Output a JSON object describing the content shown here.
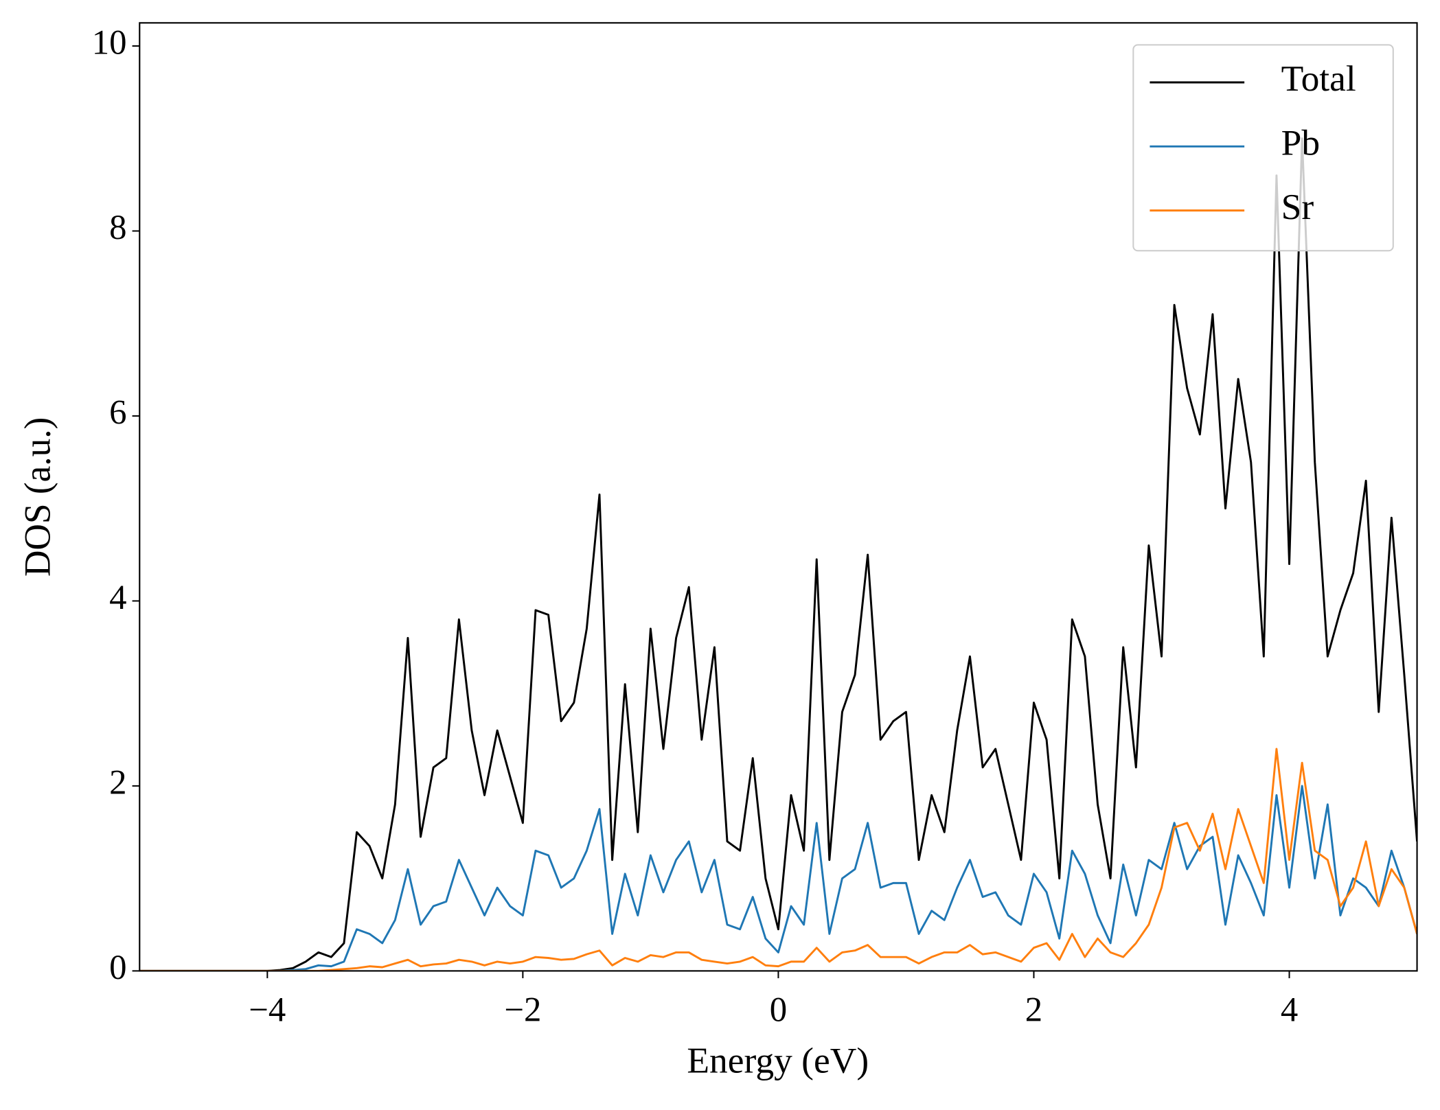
{
  "chart_data": {
    "type": "line",
    "xlabel": "Energy (eV)",
    "ylabel": "DOS (a.u.)",
    "xlim": [
      -5,
      5
    ],
    "ylim": [
      0,
      10.25
    ],
    "xticks": [
      {
        "value": -4,
        "label": "−4"
      },
      {
        "value": -2,
        "label": "−2"
      },
      0,
      2,
      4
    ],
    "yticks": [
      0,
      2,
      4,
      6,
      8,
      10
    ],
    "grid": false,
    "legend": "upper right",
    "x": [
      -5,
      -4.9,
      -4.8,
      -4.7,
      -4.6,
      -4.5,
      -4.4,
      -4.3,
      -4.2,
      -4.1,
      -4,
      -3.9,
      -3.8,
      -3.7,
      -3.6,
      -3.5,
      -3.4,
      -3.3,
      -3.2,
      -3.1,
      -3,
      -2.9,
      -2.8,
      -2.7,
      -2.6,
      -2.5,
      -2.4,
      -2.3,
      -2.2,
      -2.1,
      -2,
      -1.9,
      -1.8,
      -1.7,
      -1.6,
      -1.5,
      -1.4,
      -1.3,
      -1.2,
      -1.1,
      -1,
      -0.9,
      -0.8,
      -0.7,
      -0.6,
      -0.5,
      -0.4,
      -0.3,
      -0.2,
      -0.1,
      0,
      0.1,
      0.2,
      0.3,
      0.4,
      0.5,
      0.6,
      0.7,
      0.8,
      0.9,
      1,
      1.1,
      1.2,
      1.3,
      1.4,
      1.5,
      1.6,
      1.7,
      1.8,
      1.9,
      2,
      2.1,
      2.2,
      2.3,
      2.4,
      2.5,
      2.6,
      2.7,
      2.8,
      2.9,
      3,
      3.1,
      3.2,
      3.3,
      3.4,
      3.5,
      3.6,
      3.7,
      3.8,
      3.9,
      4,
      4.1,
      4.2,
      4.3,
      4.4,
      4.5,
      4.6,
      4.7,
      4.8,
      4.9,
      5
    ],
    "series": [
      {
        "name": "Total",
        "color": "#000000",
        "values": [
          0,
          0,
          0,
          0,
          0,
          0,
          0,
          0,
          0,
          0,
          0,
          0.01,
          0.03,
          0.1,
          0.2,
          0.15,
          0.3,
          1.5,
          1.35,
          1.0,
          1.8,
          3.6,
          1.45,
          2.2,
          2.3,
          3.8,
          2.6,
          1.9,
          2.6,
          2.1,
          1.6,
          3.9,
          3.85,
          2.7,
          2.9,
          3.7,
          5.15,
          1.2,
          3.1,
          1.5,
          3.7,
          2.4,
          3.6,
          4.15,
          2.5,
          3.5,
          1.4,
          1.3,
          2.3,
          1.0,
          0.45,
          1.9,
          1.3,
          4.45,
          1.2,
          2.8,
          3.2,
          4.5,
          2.5,
          2.7,
          2.8,
          1.2,
          1.9,
          1.5,
          2.6,
          3.4,
          2.2,
          2.4,
          1.8,
          1.2,
          2.9,
          2.5,
          1.0,
          3.8,
          3.4,
          1.8,
          1.0,
          3.5,
          2.2,
          4.6,
          3.4,
          7.2,
          6.3,
          5.8,
          7.1,
          5.0,
          6.4,
          5.5,
          3.4,
          8.6,
          4.4,
          9.0,
          5.5,
          3.4,
          3.9,
          4.3,
          5.3,
          2.8,
          4.9,
          3.2,
          1.4
        ]
      },
      {
        "name": "Pb",
        "color": "#1f77b4",
        "values": [
          0,
          0,
          0,
          0,
          0,
          0,
          0,
          0,
          0,
          0,
          0,
          0,
          0.01,
          0.02,
          0.06,
          0.05,
          0.1,
          0.45,
          0.4,
          0.3,
          0.55,
          1.1,
          0.5,
          0.7,
          0.75,
          1.2,
          0.9,
          0.6,
          0.9,
          0.7,
          0.6,
          1.3,
          1.25,
          0.9,
          1.0,
          1.3,
          1.75,
          0.4,
          1.05,
          0.6,
          1.25,
          0.85,
          1.2,
          1.4,
          0.85,
          1.2,
          0.5,
          0.45,
          0.8,
          0.35,
          0.2,
          0.7,
          0.5,
          1.6,
          0.4,
          1.0,
          1.1,
          1.6,
          0.9,
          0.95,
          0.95,
          0.4,
          0.65,
          0.55,
          0.9,
          1.2,
          0.8,
          0.85,
          0.6,
          0.5,
          1.05,
          0.85,
          0.35,
          1.3,
          1.05,
          0.6,
          0.3,
          1.15,
          0.6,
          1.2,
          1.1,
          1.6,
          1.1,
          1.35,
          1.45,
          0.5,
          1.25,
          0.95,
          0.6,
          1.9,
          0.9,
          2.0,
          1.0,
          1.8,
          0.6,
          1.0,
          0.9,
          0.7,
          1.3,
          0.9,
          0.4
        ]
      },
      {
        "name": "Sr",
        "color": "#ff7f0e",
        "values": [
          0,
          0,
          0,
          0,
          0,
          0,
          0,
          0,
          0,
          0,
          0,
          0,
          0,
          0,
          0,
          0.01,
          0.02,
          0.03,
          0.05,
          0.04,
          0.08,
          0.12,
          0.05,
          0.07,
          0.08,
          0.12,
          0.1,
          0.06,
          0.1,
          0.08,
          0.1,
          0.15,
          0.14,
          0.12,
          0.13,
          0.18,
          0.22,
          0.06,
          0.14,
          0.1,
          0.17,
          0.15,
          0.2,
          0.2,
          0.12,
          0.1,
          0.08,
          0.1,
          0.15,
          0.06,
          0.05,
          0.1,
          0.1,
          0.25,
          0.1,
          0.2,
          0.22,
          0.28,
          0.15,
          0.15,
          0.15,
          0.08,
          0.15,
          0.2,
          0.2,
          0.28,
          0.18,
          0.2,
          0.15,
          0.1,
          0.25,
          0.3,
          0.12,
          0.4,
          0.15,
          0.35,
          0.2,
          0.15,
          0.3,
          0.5,
          0.9,
          1.55,
          1.6,
          1.3,
          1.7,
          1.1,
          1.75,
          1.35,
          0.95,
          2.4,
          1.2,
          2.25,
          1.3,
          1.2,
          0.7,
          0.9,
          1.4,
          0.7,
          1.1,
          0.9,
          0.4
        ]
      }
    ]
  }
}
